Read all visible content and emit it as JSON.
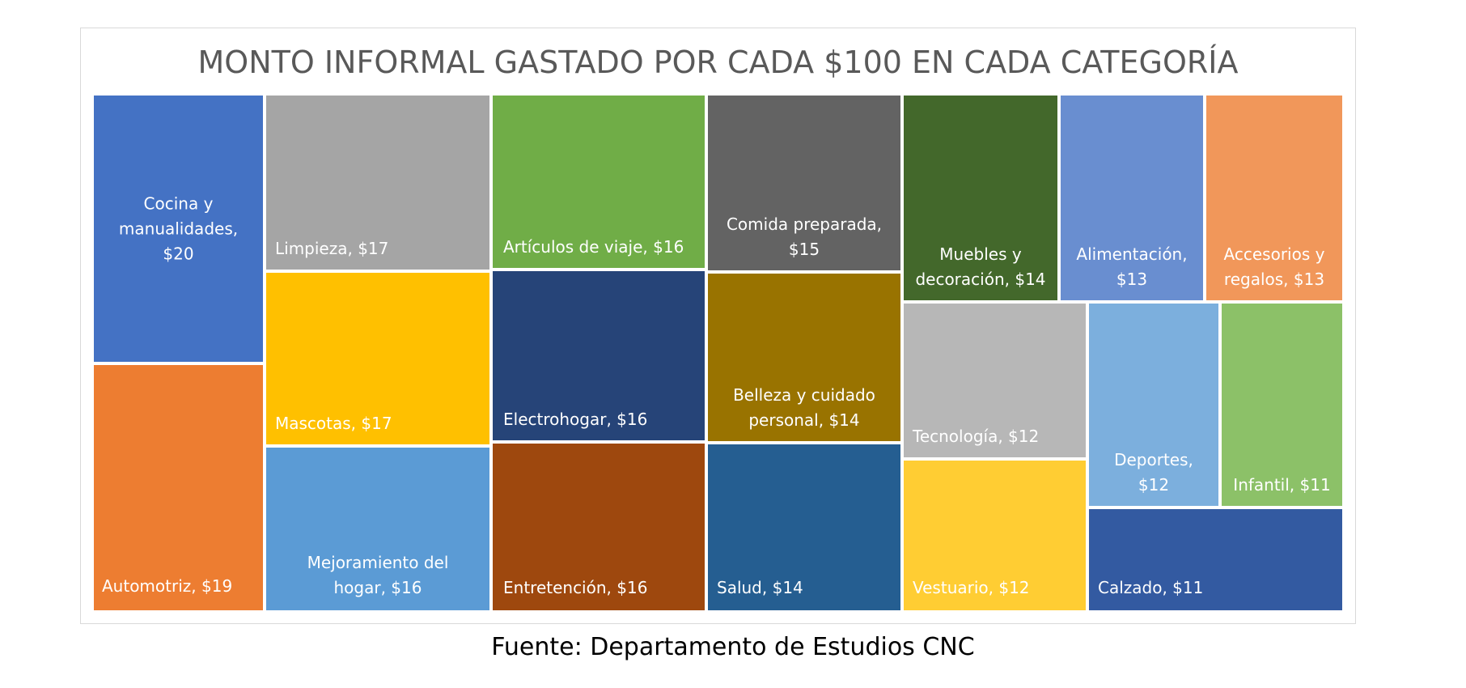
{
  "chart_data": {
    "type": "treemap",
    "title": "MONTO INFORMAL GASTADO POR CADA $100 EN CADA CATEGORÍA",
    "unit": "$",
    "items": [
      {
        "name": "Cocina y manualidades",
        "value": 20,
        "label": "Cocina y\nmanualidades,\n$20",
        "color": "#4472C4"
      },
      {
        "name": "Automotriz",
        "value": 19,
        "label": "Automotriz, $19",
        "color": "#ED7D31"
      },
      {
        "name": "Limpieza",
        "value": 17,
        "label": "Limpieza, $17",
        "color": "#A5A5A5"
      },
      {
        "name": "Mascotas",
        "value": 17,
        "label": "Mascotas, $17",
        "color": "#FFC000"
      },
      {
        "name": "Mejoramiento del hogar",
        "value": 16,
        "label": "Mejoramiento del\nhogar, $16",
        "color": "#5B9BD5"
      },
      {
        "name": "Artículos de viaje",
        "value": 16,
        "label": "Artículos de viaje, $16",
        "color": "#70AD47"
      },
      {
        "name": "Electrohogar",
        "value": 16,
        "label": "Electrohogar, $16",
        "color": "#264478"
      },
      {
        "name": "Entretención",
        "value": 16,
        "label": "Entretención, $16",
        "color": "#9E480E"
      },
      {
        "name": "Comida preparada",
        "value": 15,
        "label": "Comida preparada,\n$15",
        "color": "#636363"
      },
      {
        "name": "Belleza y cuidado personal",
        "value": 14,
        "label": "Belleza y cuidado\npersonal, $14",
        "color": "#997300"
      },
      {
        "name": "Salud",
        "value": 14,
        "label": "Salud, $14",
        "color": "#255E91"
      },
      {
        "name": "Muebles y decoración",
        "value": 14,
        "label": "Muebles y\ndecoración, $14",
        "color": "#43682B"
      },
      {
        "name": "Alimentación",
        "value": 13,
        "label": "Alimentación,\n$13",
        "color": "#698ED0"
      },
      {
        "name": "Accesorios y regalos",
        "value": 13,
        "label": "Accesorios y\nregalos, $13",
        "color": "#F1975A"
      },
      {
        "name": "Tecnología",
        "value": 12,
        "label": "Tecnología, $12",
        "color": "#B7B7B7"
      },
      {
        "name": "Vestuario",
        "value": 12,
        "label": "Vestuario, $12",
        "color": "#FFCD33"
      },
      {
        "name": "Deportes",
        "value": 12,
        "label": "Deportes,\n$12",
        "color": "#7CAFDD"
      },
      {
        "name": "Infantil",
        "value": 11,
        "label": "Infantil, $11",
        "color": "#8CC168"
      },
      {
        "name": "Calzado",
        "value": 11,
        "label": "Calzado, $11",
        "color": "#335AA1"
      }
    ]
  },
  "source": "Fuente: Departamento de Estudios CNC"
}
